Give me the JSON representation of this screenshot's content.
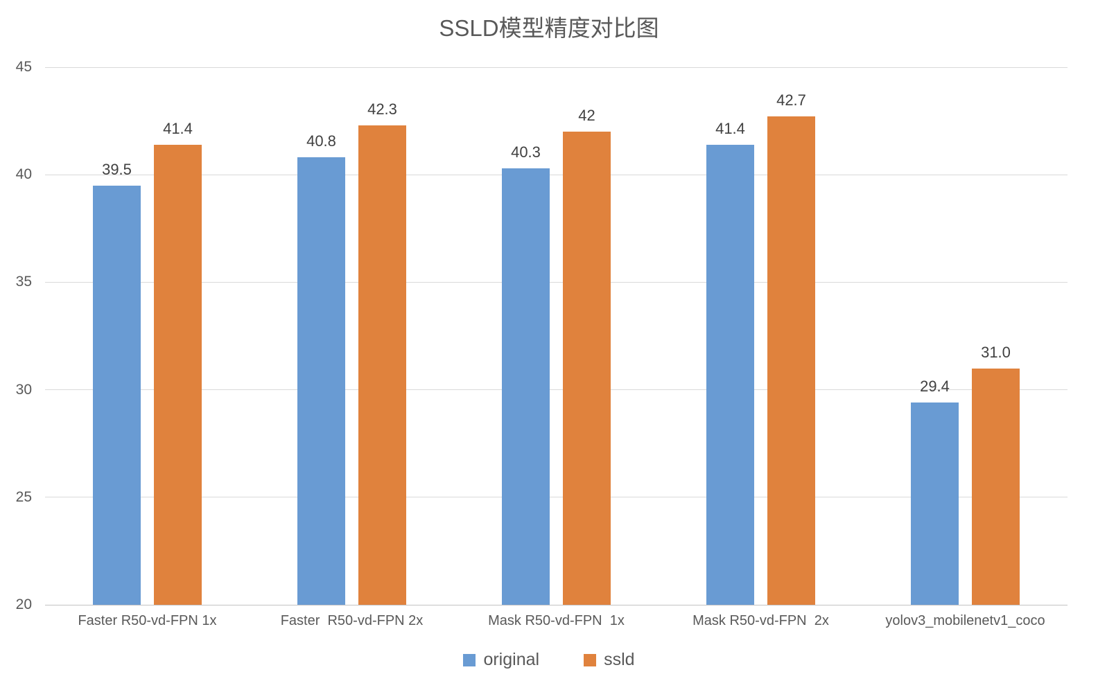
{
  "chart_data": {
    "type": "bar",
    "title": "SSLD模型精度对比图",
    "categories": [
      "Faster R50-vd-FPN 1x",
      "Faster  R50-vd-FPN 2x",
      "Mask R50-vd-FPN  1x",
      "Mask R50-vd-FPN  2x",
      "yolov3_mobilenetv1_coco"
    ],
    "series": [
      {
        "name": "original",
        "color": "#699bd3",
        "values": [
          39.5,
          40.8,
          40.3,
          41.4,
          29.4
        ],
        "labels": [
          "39.5",
          "40.8",
          "40.3",
          "41.4",
          "29.4"
        ]
      },
      {
        "name": "ssld",
        "color": "#e0823d",
        "values": [
          41.4,
          42.3,
          42.0,
          42.7,
          31.0
        ],
        "labels": [
          "41.4",
          "42.3",
          "42",
          "42.7",
          "31.0"
        ]
      }
    ],
    "ylim": [
      20,
      45
    ],
    "ytick_step": 5,
    "ytick_labels": [
      "20",
      "25",
      "30",
      "35",
      "40",
      "45"
    ],
    "grid": "horizontal",
    "gridline_color": "#d9d9d9",
    "legend_position": "bottom-center",
    "legend": [
      {
        "label": "original",
        "color": "#699bd3"
      },
      {
        "label": "ssld",
        "color": "#e0823d"
      }
    ]
  }
}
